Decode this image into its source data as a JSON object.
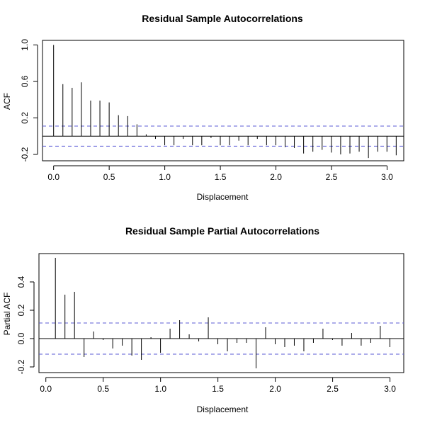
{
  "chart_data": [
    {
      "type": "bar",
      "title": "Residual Sample Autocorrelations",
      "xlabel": "Displacement",
      "ylabel": "ACF",
      "xlim": [
        -0.1,
        3.15
      ],
      "ylim": [
        -0.27,
        1.05
      ],
      "xticks": [
        0.0,
        0.5,
        1.0,
        1.5,
        2.0,
        2.5,
        3.0
      ],
      "xtick_labels": [
        "0.0",
        "0.5",
        "1.0",
        "1.5",
        "2.0",
        "2.5",
        "3.0"
      ],
      "yticks": [
        -0.2,
        0.2,
        0.6,
        1.0
      ],
      "ytick_labels": [
        "-0.2",
        "0.2",
        "0.6",
        "1.0"
      ],
      "confidence_band": 0.11,
      "confidence_color": "#5b5bd6",
      "grid": false,
      "lag_step": 0.0833,
      "values": [
        1.0,
        0.57,
        0.53,
        0.59,
        0.39,
        0.39,
        0.37,
        0.23,
        0.22,
        0.13,
        0.02,
        -0.03,
        -0.1,
        -0.1,
        -0.03,
        -0.1,
        -0.1,
        -0.02,
        -0.1,
        -0.1,
        -0.05,
        -0.1,
        -0.03,
        -0.1,
        -0.1,
        -0.12,
        -0.13,
        -0.19,
        -0.17,
        -0.15,
        -0.18,
        -0.2,
        -0.19,
        -0.17,
        -0.24,
        -0.17,
        -0.17,
        -0.21
      ]
    },
    {
      "type": "bar",
      "title": "Residual Sample Partial Autocorrelations",
      "xlabel": "Displacement",
      "ylabel": "Partial ACF",
      "xlim": [
        -0.06,
        3.12
      ],
      "ylim": [
        -0.24,
        0.6
      ],
      "xticks": [
        0.0,
        0.5,
        1.0,
        1.5,
        2.0,
        2.5,
        3.0
      ],
      "xtick_labels": [
        "0.0",
        "0.5",
        "1.0",
        "1.5",
        "2.0",
        "2.5",
        "3.0"
      ],
      "yticks": [
        -0.2,
        0.0,
        0.2,
        0.4
      ],
      "ytick_labels": [
        "-0.2",
        "0.0",
        "0.2",
        "0.4"
      ],
      "confidence_band": 0.11,
      "confidence_color": "#5b5bd6",
      "grid": false,
      "lag_step": 0.0833,
      "lag_start_index": 1,
      "values": [
        0.57,
        0.31,
        0.33,
        -0.13,
        0.05,
        -0.01,
        -0.07,
        -0.05,
        -0.12,
        -0.15,
        0.01,
        -0.1,
        0.07,
        0.13,
        0.03,
        -0.02,
        0.15,
        -0.04,
        -0.09,
        -0.03,
        -0.03,
        -0.21,
        0.08,
        -0.04,
        -0.06,
        -0.05,
        -0.09,
        -0.03,
        0.07,
        -0.01,
        -0.05,
        0.04,
        -0.05,
        -0.03,
        0.09,
        -0.06
      ]
    }
  ]
}
